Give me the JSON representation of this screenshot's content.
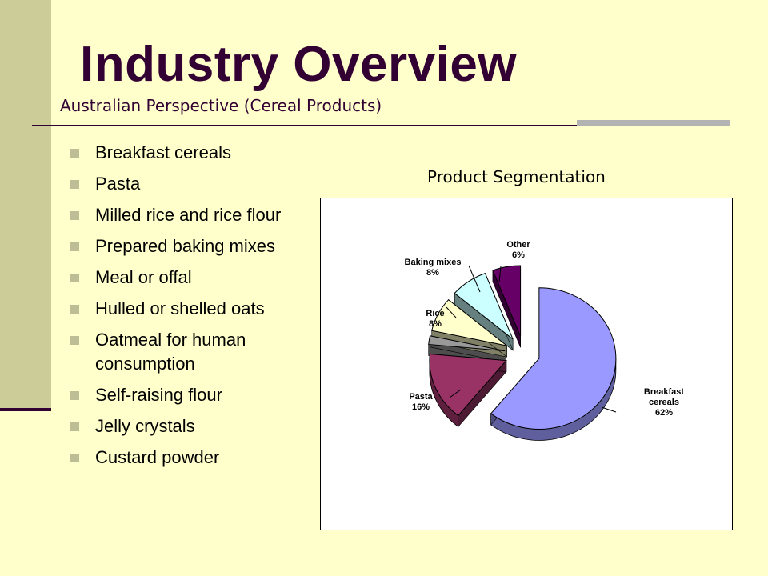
{
  "slide": {
    "title": "Industry Overview",
    "subtitle": "Australian Perspective (Cereal Products)",
    "bullets": [
      "Breakfast cereals",
      "Pasta",
      "Milled rice and rice flour",
      "Prepared baking mixes",
      "Meal or offal",
      "Hulled or shelled oats",
      "Oatmeal for human consumption",
      "Self-raising flour",
      "Jelly crystals",
      "Custard powder"
    ]
  },
  "chart_data": {
    "type": "pie",
    "title": "Product Segmentation",
    "style": "3d-exploded",
    "slices": [
      {
        "label": "Breakfast cereals",
        "value": 62,
        "value_label": "62%",
        "color": "#9999ff"
      },
      {
        "label": "Pasta",
        "value": 16,
        "value_label": "16%",
        "color": "#993366"
      },
      {
        "label": "",
        "value": 2,
        "value_label": "",
        "color": "#999999"
      },
      {
        "label": "Rice",
        "value": 8,
        "value_label": "8%",
        "color": "#ffffcc"
      },
      {
        "label": "Baking mixes",
        "value": 8,
        "value_label": "8%",
        "color": "#ccffff"
      },
      {
        "label": "Other",
        "value": 6,
        "value_label": "6%",
        "color": "#660066"
      }
    ],
    "legend": "none",
    "colors": {
      "frame": "#000000",
      "label_text": "#000000"
    }
  }
}
